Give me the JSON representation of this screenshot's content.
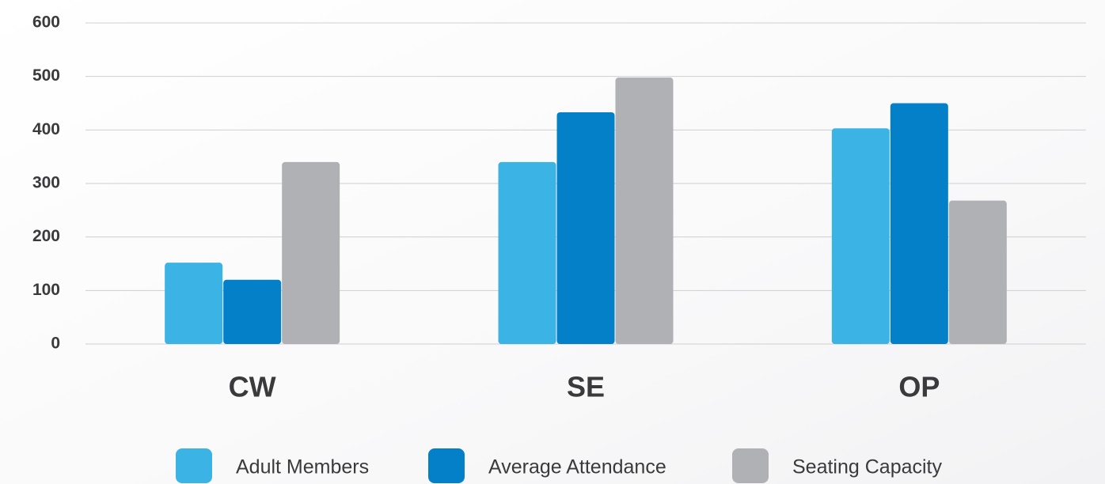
{
  "chart_data": {
    "type": "bar",
    "categories": [
      "CW",
      "SE",
      "OP"
    ],
    "series": [
      {
        "name": "Adult Members",
        "color": "#3bb3e4",
        "values": [
          152,
          340,
          403
        ]
      },
      {
        "name": "Average Attendance",
        "color": "#0380c8",
        "values": [
          120,
          433,
          450
        ]
      },
      {
        "name": "Seating Capacity",
        "color": "#b0b1b5",
        "values": [
          340,
          498,
          268
        ]
      }
    ],
    "ylim": [
      0,
      600
    ],
    "yticks": [
      0,
      100,
      200,
      300,
      400,
      500,
      600
    ],
    "grid": true,
    "legend": "bottom"
  }
}
